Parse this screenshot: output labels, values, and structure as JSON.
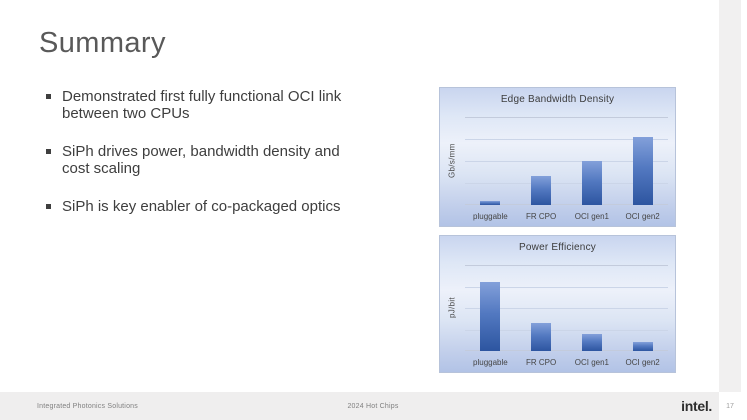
{
  "slide": {
    "title": "Summary",
    "bullets": [
      "Demonstrated first fully functional OCI link\nbetween two CPUs",
      "SiPh drives power, bandwidth density and\ncost scaling",
      "SiPh is key enabler of co-packaged optics"
    ]
  },
  "footer": {
    "left_text": "Integrated Photonics Solutions",
    "center_text": "2024 Hot Chips",
    "logo_text": "intel.",
    "page_number": "17"
  },
  "colors": {
    "title_text": "#595959",
    "body_text": "#3e3e3e",
    "chart_border": "#b7c3da",
    "chart_background_top": "#c9d5ef",
    "chart_background_bottom": "#b2c3e6",
    "bar_gradient_top": "#83a0da",
    "bar_gradient_bottom": "#2d55a0",
    "footer_background": "#efeeee",
    "footer_text": "#808080",
    "logo_color": "#2f2f2f"
  },
  "chart_data": [
    {
      "type": "bar",
      "title": "Edge Bandwidth Density",
      "ylabel": "Gb/s/mm",
      "xlabel": "",
      "categories": [
        "pluggable",
        "FR CPO",
        "OCI gen1",
        "OCI gen2"
      ],
      "values": [
        5,
        33,
        50,
        77
      ],
      "value_units": "relative bar height, % of axis max (no numeric tick labels shown)",
      "ylim": [
        0,
        100
      ],
      "grid": true,
      "legend": false
    },
    {
      "type": "bar",
      "title": "Power Efficiency",
      "ylabel": "pJ/bit",
      "xlabel": "",
      "categories": [
        "pluggable",
        "FR CPO",
        "OCI gen1",
        "OCI gen2"
      ],
      "values": [
        80,
        32,
        20,
        11
      ],
      "value_units": "relative bar height, % of axis max (no numeric tick labels shown)",
      "ylim": [
        0,
        100
      ],
      "grid": true,
      "legend": false
    }
  ]
}
